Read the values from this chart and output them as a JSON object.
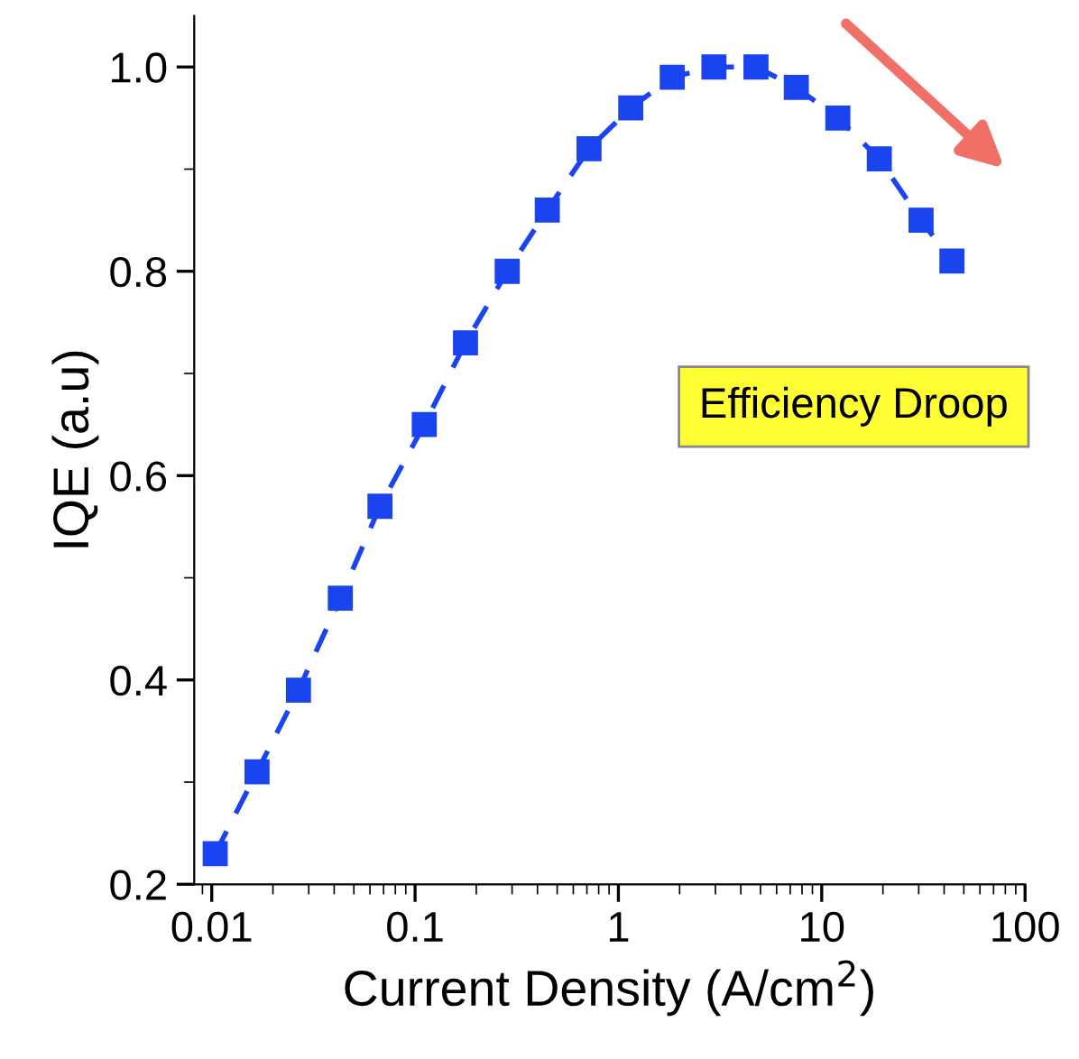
{
  "chart_data": {
    "type": "line",
    "xlabel": "Current Density (A/cm$^{2}$)",
    "ylabel": "IQE (a.u)",
    "log": "x",
    "x": [
      0.0104,
      0.0167,
      0.0267,
      0.0429,
      0.0672,
      0.111,
      0.177,
      0.284,
      0.447,
      0.717,
      1.15,
      1.84,
      2.95,
      4.75,
      7.5,
      12.0,
      19.2,
      30.8,
      43.7
    ],
    "series": [
      {
        "color": "#1a44f0",
        "values": [
          0.23,
          0.31,
          0.39,
          0.48,
          0.57,
          0.65,
          0.73,
          0.8,
          0.86,
          0.92,
          0.96,
          0.99,
          1.0,
          1.0,
          0.98,
          0.95,
          0.91,
          0.85,
          0.81
        ]
      }
    ],
    "marker": "square",
    "line_style": "dashed",
    "grid": false,
    "xlim": [
      0.0082,
      100
    ],
    "ylim": [
      0.2,
      1.05
    ],
    "xticks": [
      {
        "value": 0.01,
        "label": "0.01"
      },
      {
        "value": 0.1,
        "label": "0.1"
      },
      1,
      10,
      100
    ],
    "yticks": [
      {
        "value": 0.2,
        "label": "0.2"
      },
      {
        "value": 0.4,
        "label": "0.4"
      },
      {
        "value": 0.6,
        "label": "0.6"
      },
      {
        "value": 0.8,
        "label": "0.8"
      },
      {
        "value": 1.0,
        "label": "1.0"
      }
    ],
    "annotations": [
      "Efficiency Droop"
    ]
  }
}
